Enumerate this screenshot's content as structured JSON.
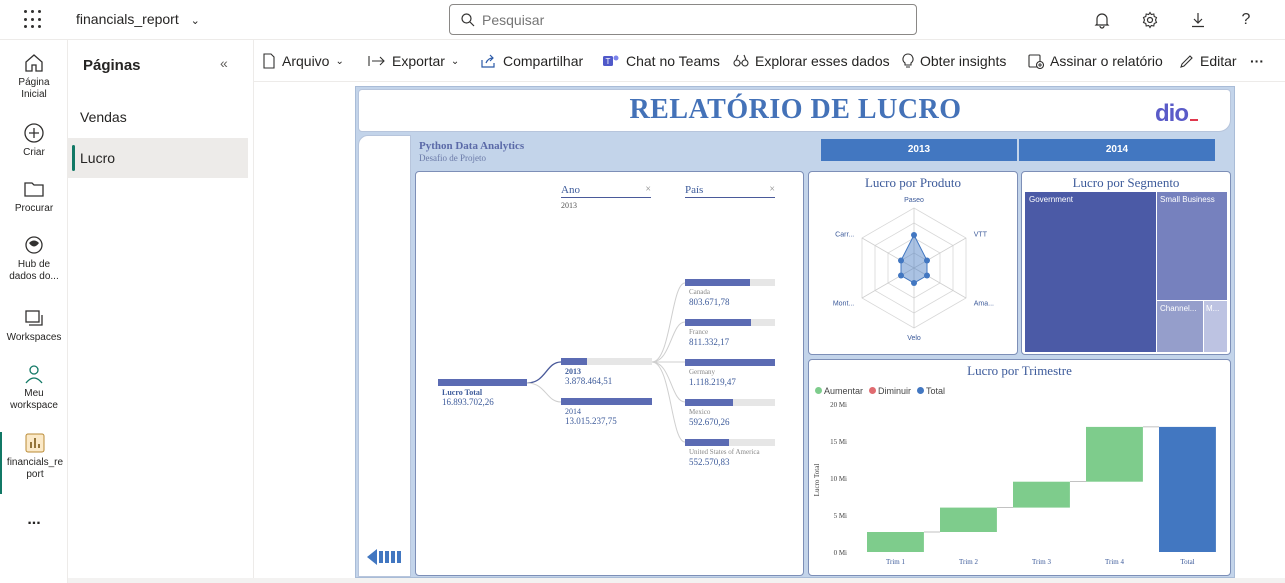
{
  "topbar": {
    "app_title": "financials_report",
    "search_placeholder": "Pesquisar"
  },
  "rail": {
    "items": [
      {
        "label": "Página Inicial"
      },
      {
        "label": "Criar"
      },
      {
        "label": "Procurar"
      },
      {
        "label": "Hub de dados do..."
      },
      {
        "label": "Workspaces"
      },
      {
        "label": "Meu workspace"
      },
      {
        "label": "financials_report"
      }
    ],
    "more": "..."
  },
  "pages": {
    "title": "Páginas",
    "items": [
      {
        "label": "Vendas"
      },
      {
        "label": "Lucro"
      }
    ]
  },
  "actions": {
    "arquivo": "Arquivo",
    "exportar": "Exportar",
    "compartilhar": "Compartilhar",
    "chat": "Chat no Teams",
    "explorar": "Explorar esses dados",
    "insights": "Obter insights",
    "assinar": "Assinar o relatório",
    "editar": "Editar",
    "more": "···"
  },
  "report": {
    "title": "RELATÓRIO DE LUCRO",
    "logo_text": "dio",
    "subtitle": "Python Data Analytics",
    "subtitle2": "Desafio de Projeto",
    "year_buttons": [
      "2013",
      "2014"
    ],
    "colors": {
      "accent": "#3d7bc4",
      "title": "#4472b8",
      "bar": "#5b6bb3",
      "increase": "#7ecc8c",
      "decrease": "#e06b70",
      "total": "#4277c1"
    }
  },
  "decomp": {
    "col1_title": "Ano",
    "col1_sub": "2013",
    "col2_title": "País",
    "root_label": "Lucro Total",
    "root_value": "16.893.702,26",
    "years": [
      {
        "label": "2013",
        "value": "3.878.464,51",
        "fraction": 0.23
      },
      {
        "label": "2014",
        "value": "13.015.237,75",
        "fraction": 0.77
      }
    ],
    "countries": [
      {
        "label": "Canada",
        "value": "803.671,78",
        "fraction": 0.72
      },
      {
        "label": "France",
        "value": "811.332,17",
        "fraction": 0.73
      },
      {
        "label": "Germany",
        "value": "1.118.219,47",
        "fraction": 1.0
      },
      {
        "label": "Mexico",
        "value": "592.670,26",
        "fraction": 0.53
      },
      {
        "label": "United States of America",
        "value": "552.570,83",
        "fraction": 0.49
      }
    ]
  },
  "radar": {
    "title": "Lucro por Produto",
    "axes": [
      "Paseo",
      "VTT",
      "Ama...",
      "Velo",
      "Mont...",
      "Carr..."
    ],
    "values": [
      0.55,
      0.25,
      0.25,
      0.25,
      0.25,
      0.25
    ]
  },
  "treemap": {
    "title": "Lucro por Segmento",
    "segments": [
      "Government",
      "Small Business",
      "Channel...",
      "M..."
    ]
  },
  "chart_data": {
    "type": "bar",
    "title": "Lucro por Trimestre",
    "legend": [
      "Aumentar",
      "Diminuir",
      "Total"
    ],
    "categories": [
      "Trim 1",
      "Trim 2",
      "Trim 3",
      "Trim 4",
      "Total"
    ],
    "ylabel": "Lucro Total",
    "yticks": [
      "20 Mi",
      "15 Mi",
      "10 Mi",
      "5 Mi",
      "0 Mi"
    ],
    "ylim": [
      0,
      20
    ],
    "waterfall": [
      {
        "category": "Trim 1",
        "start": 0,
        "end": 2.7,
        "kind": "Aumentar"
      },
      {
        "category": "Trim 2",
        "start": 2.7,
        "end": 6.0,
        "kind": "Aumentar"
      },
      {
        "category": "Trim 3",
        "start": 6.0,
        "end": 9.5,
        "kind": "Aumentar"
      },
      {
        "category": "Trim 4",
        "start": 9.5,
        "end": 16.9,
        "kind": "Aumentar"
      },
      {
        "category": "Total",
        "start": 0,
        "end": 16.9,
        "kind": "Total"
      }
    ]
  }
}
